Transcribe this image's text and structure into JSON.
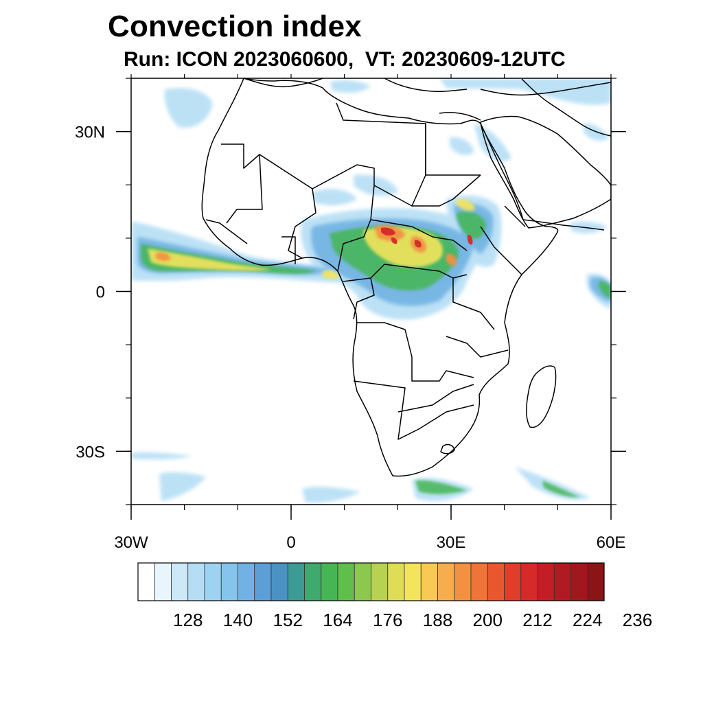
{
  "title": "Convection index",
  "subtitle": "Run: ICON 2023060600,  VT: 20230609-12UTC",
  "map": {
    "lon_range": [
      -30,
      60
    ],
    "lat_range": [
      -40,
      40
    ],
    "x_ticks": [
      {
        "lon": -30,
        "label": "30W"
      },
      {
        "lon": 0,
        "label": "0"
      },
      {
        "lon": 30,
        "label": "30E"
      },
      {
        "lon": 60,
        "label": "60E"
      }
    ],
    "y_ticks": [
      {
        "lat": 30,
        "label": "30N"
      },
      {
        "lat": 0,
        "label": "0"
      },
      {
        "lat": -30,
        "label": "30S"
      }
    ]
  },
  "colorbar": {
    "colors": [
      "#ffffff",
      "#e8f5fc",
      "#cde9f8",
      "#b5def5",
      "#9cd3f2",
      "#85c4ec",
      "#71b2e3",
      "#5c9fd6",
      "#4a91c4",
      "#3d9b95",
      "#3fa96e",
      "#45b653",
      "#60bf4c",
      "#8cc74e",
      "#b7d250",
      "#dedd55",
      "#f3e45b",
      "#f8c955",
      "#f6ad4d",
      "#f39143",
      "#ef7437",
      "#e9572e",
      "#e03e2a",
      "#d52a27",
      "#c31d26",
      "#b01a22",
      "#a0171e",
      "#8a1416"
    ],
    "labels": [
      "128",
      "140",
      "152",
      "164",
      "176",
      "188",
      "200",
      "212",
      "224",
      "236"
    ]
  }
}
